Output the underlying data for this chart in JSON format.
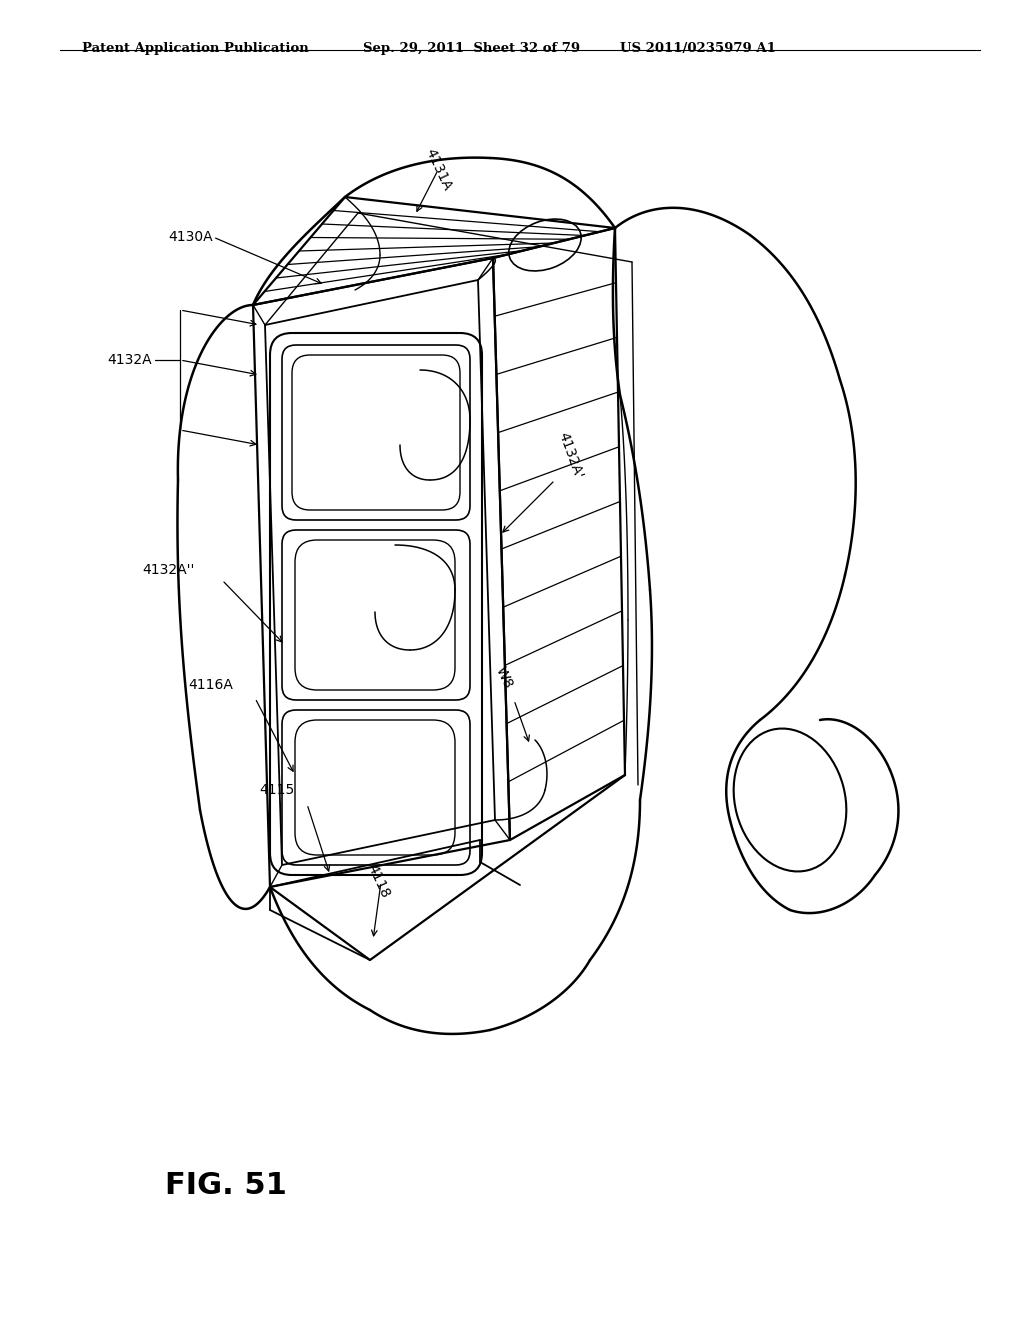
{
  "background_color": "#ffffff",
  "header_left": "Patent Application Publication",
  "header_center": "Sep. 29, 2011  Sheet 32 of 79",
  "header_right": "US 2011/0235979 A1",
  "figure_label": "FIG. 51"
}
